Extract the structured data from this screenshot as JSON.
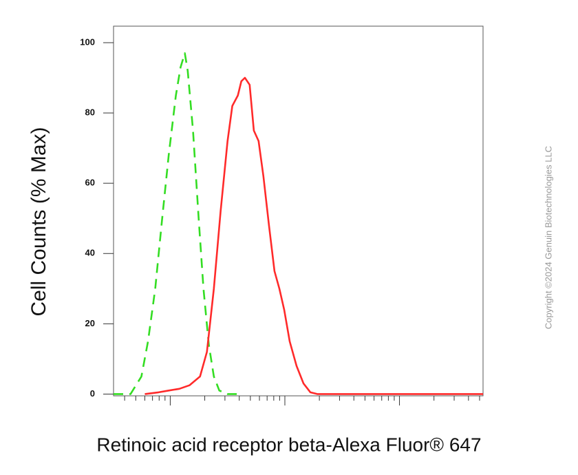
{
  "chart_data": {
    "type": "line",
    "y_label": "Cell Counts (% Max)",
    "x_label": "Retinoic acid receptor beta-Alexa Fluor® 647",
    "x_scale": "log",
    "xlim": [
      32,
      53600
    ],
    "xticks": [
      100,
      1000,
      10000
    ],
    "ylim": [
      -0.5,
      104.7
    ],
    "yticks": [
      0,
      20,
      40,
      60,
      80,
      100
    ],
    "series": [
      {
        "color": "#33dd22",
        "dash": true,
        "x": [
          32,
          45,
          56,
          64,
          74,
          85,
          97,
          112,
          123,
          134,
          142,
          158,
          177,
          195,
          217,
          240,
          268,
          316,
          389
        ],
        "values": [
          0,
          0,
          5,
          15,
          30,
          50,
          68,
          85,
          93,
          97,
          92,
          75,
          50,
          30,
          14,
          5,
          1,
          0,
          0
        ]
      },
      {
        "color": "#ff2a2a",
        "dash": false,
        "x": [
          60,
          79,
          97,
          120,
          147,
          182,
          209,
          240,
          275,
          316,
          348,
          389,
          417,
          448,
          493,
          536,
          590,
          650,
          727,
          812,
          896,
          986,
          1102,
          1265,
          1455,
          1671,
          1919,
          53600
        ],
        "values": [
          0,
          0.5,
          1,
          1.5,
          2.5,
          5,
          12,
          30,
          52,
          72,
          82,
          85,
          89,
          90,
          88,
          75,
          72,
          62,
          48,
          35,
          30,
          24,
          15,
          8,
          3,
          0.5,
          0,
          0
        ]
      }
    ]
  },
  "watermark": "Copyright ©2024 Genuin Biotechnologies LLC"
}
